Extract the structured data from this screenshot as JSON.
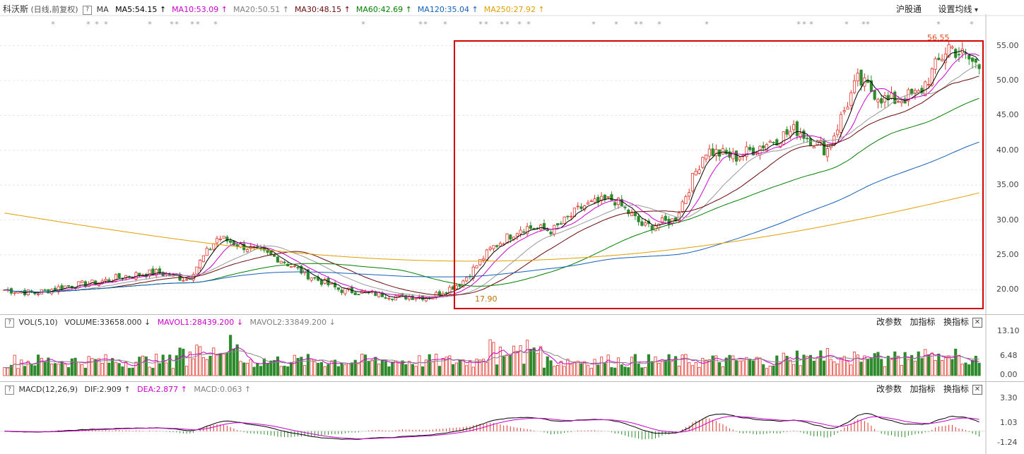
{
  "header": {
    "stock_name": "科沃斯",
    "period": "(日线,前复权)",
    "help_glyph": "?",
    "ma_label": "MA",
    "ma_items": [
      {
        "text": "MA5:54.15",
        "arrow": "↑",
        "color": "#000000"
      },
      {
        "text": "MA10:53.09",
        "arrow": "↑",
        "color": "#cc00cc"
      },
      {
        "text": "MA20:50.51",
        "arrow": "↑",
        "color": "#808080"
      },
      {
        "text": "MA30:48.15",
        "arrow": "↑",
        "color": "#6b0a0a"
      },
      {
        "text": "MA60:42.69",
        "arrow": "↑",
        "color": "#008000"
      },
      {
        "text": "MA120:35.04",
        "arrow": "↑",
        "color": "#1560bd"
      },
      {
        "text": "MA250:27.92",
        "arrow": "↑",
        "color": "#e0a000"
      }
    ],
    "right_buttons": [
      "沪股通",
      "设置均线"
    ],
    "dropdown_glyph": "▾"
  },
  "price_axis": {
    "ticks": [
      "55.00",
      "50.00",
      "45.00",
      "40.00",
      "35.00",
      "30.00",
      "25.00",
      "20.00"
    ]
  },
  "annotations": {
    "high_label": "56.55",
    "low_label": "17.90"
  },
  "volume_panel": {
    "label": "VOL(5,10)",
    "volume": "VOLUME:33658.000",
    "volume_arrow": "↓",
    "mavol1": "MAVOL1:28439.200",
    "mavol1_arrow": "↓",
    "mavol2": "MAVOL2:33849.200",
    "mavol2_arrow": "↓",
    "ticks": [
      "13.10",
      "6.48",
      "0.00"
    ],
    "buttons": [
      "改参数",
      "加指标",
      "换指标"
    ],
    "close_glyph": "✕"
  },
  "macd_panel": {
    "label": "MACD(12,26,9)",
    "dif": "DIF:2.909",
    "dif_arrow": "↑",
    "dea": "DEA:2.877",
    "dea_arrow": "↑",
    "macd": "MACD:0.063",
    "macd_arrow": "↑",
    "ticks": [
      "3.30",
      "1.03",
      "-1.24"
    ],
    "buttons": [
      "改参数",
      "加指标",
      "换指标"
    ],
    "close_glyph": "✕"
  },
  "colors": {
    "up": "#e0352b",
    "down": "#2d8a2d",
    "highlight_box": "#d40000"
  },
  "chart_data": {
    "type": "candlestick",
    "price_range": [
      17.0,
      57.5
    ],
    "price_series_shape": [
      20.0,
      19.5,
      20.5,
      21.0,
      22.0,
      22.5,
      21.5,
      27.5,
      26.0,
      24.5,
      22.0,
      20.0,
      19.5,
      19.0,
      19.0,
      21.0,
      26.0,
      29.0,
      28.5,
      32.0,
      33.0,
      29.0,
      30.0,
      40.0,
      39.0,
      41.0,
      43.0,
      40.0,
      50.0,
      47.0,
      48.0,
      55.0,
      52.0
    ],
    "ma_end_values": {
      "MA5": 54.15,
      "MA10": 53.09,
      "MA20": 50.51,
      "MA30": 48.15,
      "MA60": 42.69,
      "MA120": 35.04,
      "MA250": 27.92
    },
    "high": 56.55,
    "low": 17.9,
    "volume_range": [
      0,
      13.1
    ],
    "macd_range": [
      -1.24,
      3.3
    ],
    "dif": 2.909,
    "dea": 2.877,
    "macd": 0.063
  }
}
